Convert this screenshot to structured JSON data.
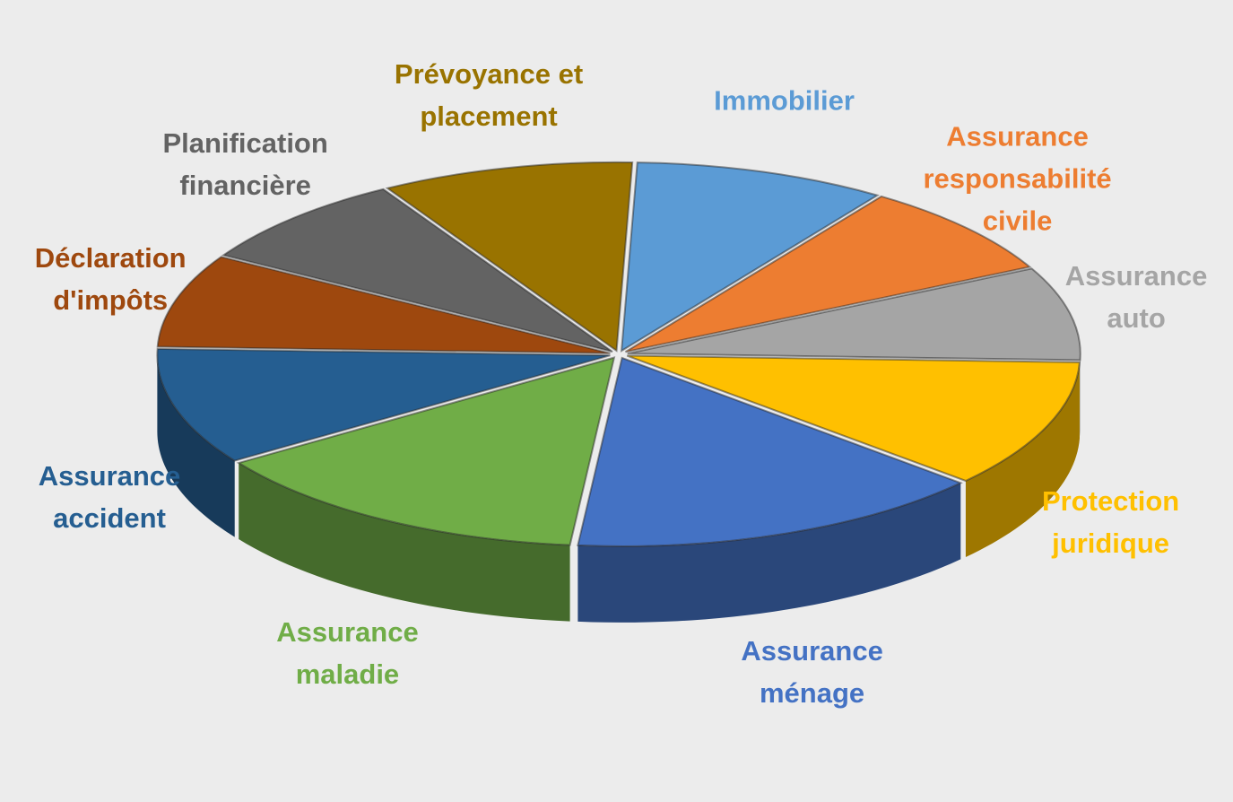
{
  "chart_data": {
    "type": "pie3d",
    "categories": [
      "Immobilier",
      "Assurance responsabilité civile",
      "Assurance auto",
      "Protection juridique",
      "Assurance ménage",
      "Assurance maladie",
      "Assurance accident",
      "Déclaration d'impôts",
      "Planification financière",
      "Prévoyance et placement"
    ],
    "values": [
      9,
      8,
      8,
      11,
      15,
      14,
      10,
      8,
      8,
      9
    ],
    "colors": [
      "#5b9bd5",
      "#ed7d31",
      "#a5a5a5",
      "#ffc000",
      "#4472c4",
      "#70ad47",
      "#255e91",
      "#9e480e",
      "#636363",
      "#997300"
    ]
  }
}
